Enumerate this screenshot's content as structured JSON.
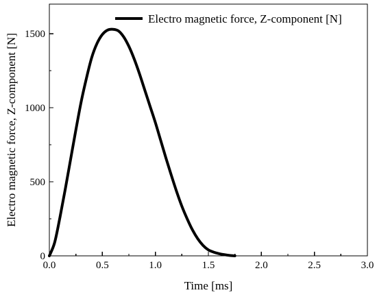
{
  "chart_data": {
    "type": "line",
    "xlabel": "Time [ms]",
    "ylabel": "Electro magnetic force, Z-component [N]",
    "xlim": [
      0,
      3.0
    ],
    "ylim": [
      0,
      1700
    ],
    "x_ticks": [
      0.0,
      0.5,
      1.0,
      1.5,
      2.0,
      2.5,
      3.0
    ],
    "x_tick_labels": [
      "0.0",
      "0.5",
      "1.0",
      "1.5",
      "2.0",
      "2.5",
      "3.0"
    ],
    "y_ticks": [
      0,
      500,
      1000,
      1500
    ],
    "y_tick_labels": [
      "0",
      "500",
      "1000",
      "1500"
    ],
    "grid": false,
    "legend_position": "top-right",
    "series": [
      {
        "name": "Electro magnetic force, Z-component [N]",
        "color": "#000000",
        "x": [
          0.0,
          0.05,
          0.1,
          0.15,
          0.2,
          0.25,
          0.3,
          0.35,
          0.4,
          0.45,
          0.5,
          0.55,
          0.6,
          0.65,
          0.7,
          0.75,
          0.8,
          0.85,
          0.9,
          0.95,
          1.0,
          1.05,
          1.1,
          1.15,
          1.2,
          1.25,
          1.3,
          1.35,
          1.4,
          1.45,
          1.5,
          1.55,
          1.6,
          1.65,
          1.7,
          1.75
        ],
        "y": [
          0,
          90,
          260,
          450,
          650,
          850,
          1040,
          1200,
          1340,
          1435,
          1495,
          1525,
          1530,
          1520,
          1480,
          1415,
          1330,
          1230,
          1120,
          1010,
          900,
          780,
          660,
          545,
          435,
          335,
          250,
          175,
          115,
          70,
          40,
          25,
          15,
          8,
          3,
          0
        ]
      }
    ]
  }
}
